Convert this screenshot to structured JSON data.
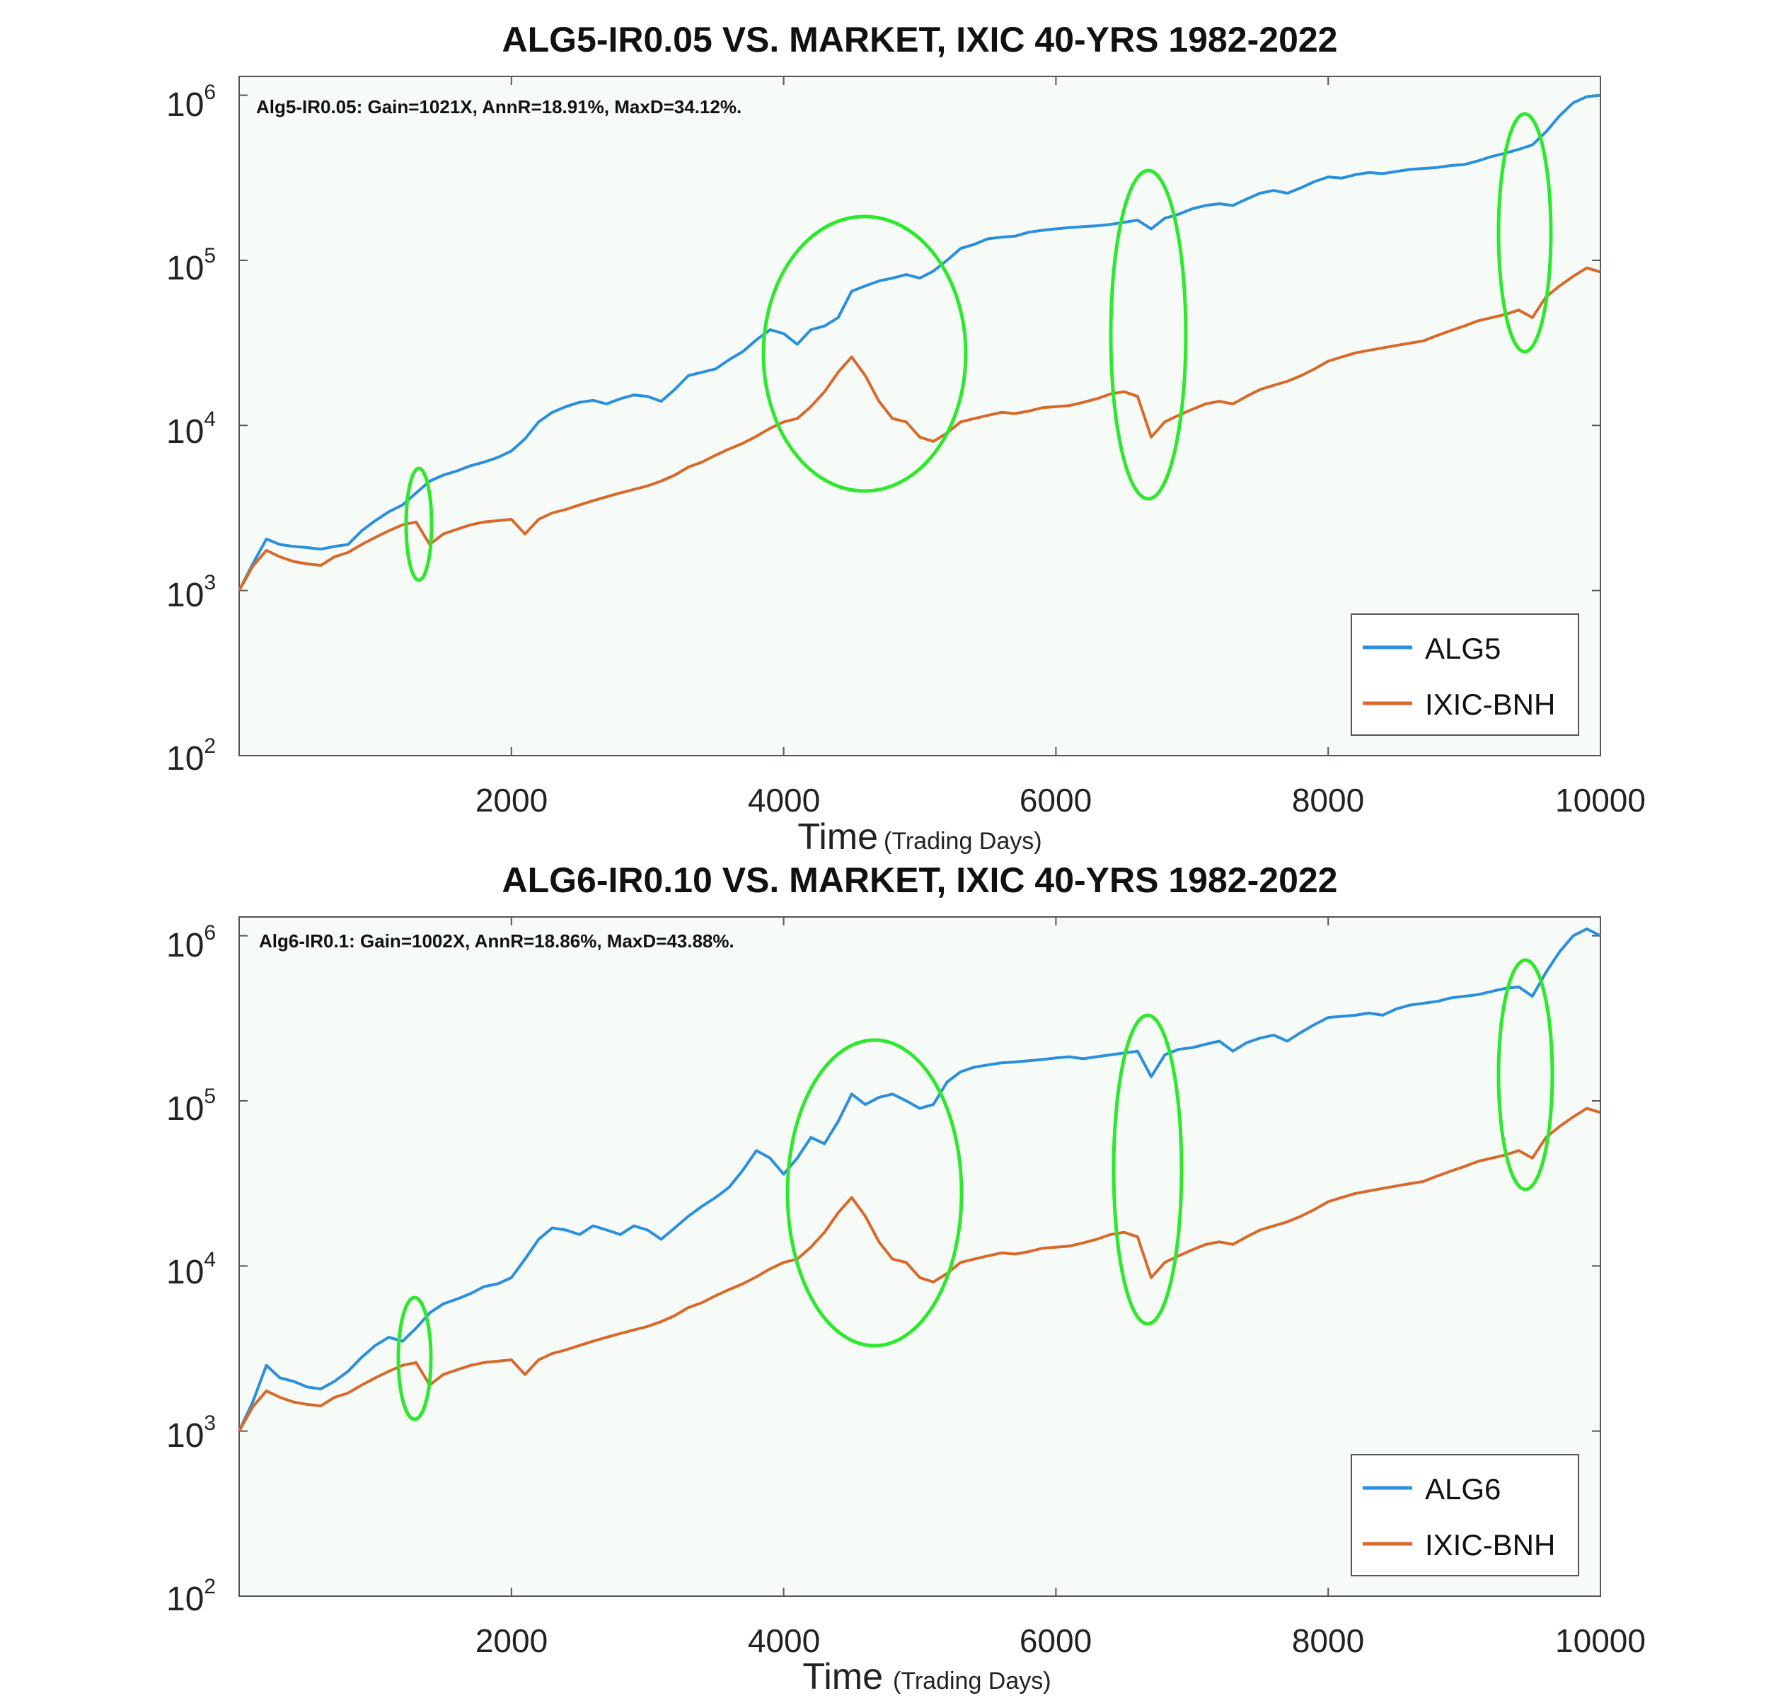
{
  "chart_data": [
    {
      "type": "line",
      "title": "ALG5-IR0.05 VS. MARKET, IXIC 40-YRS 1982-2022",
      "annotation": "Alg5-IR0.05: Gain=1021X, AnnR=18.91%, MaxD=34.12%.",
      "xlabel": "Time",
      "xlabel_note": "(Trading Days)",
      "ylabel": "",
      "xlim": [
        0,
        10000
      ],
      "ylim": [
        100,
        1300000
      ],
      "yscale": "log",
      "x_ticks": [
        2000,
        4000,
        6000,
        8000,
        10000
      ],
      "x_tick_labels": [
        "2000",
        "4000",
        "6000",
        "8000",
        "10000"
      ],
      "y_tick_bases": [
        "10",
        "10",
        "10",
        "10",
        "10"
      ],
      "y_tick_exponents": [
        "2",
        "3",
        "4",
        "5",
        "6"
      ],
      "grid": false,
      "legend_position": "bottom-right",
      "series": [
        {
          "name": "ALG5",
          "color": "#2a8fde",
          "x": [
            0,
            100,
            200,
            300,
            400,
            500,
            600,
            700,
            800,
            900,
            1000,
            1100,
            1200,
            1300,
            1400,
            1500,
            1600,
            1700,
            1800,
            1900,
            2000,
            2100,
            2200,
            2300,
            2400,
            2500,
            2600,
            2700,
            2800,
            2900,
            3000,
            3100,
            3200,
            3300,
            3400,
            3500,
            3600,
            3700,
            3800,
            3900,
            4000,
            4100,
            4200,
            4300,
            4400,
            4500,
            4600,
            4700,
            4800,
            4900,
            5000,
            5100,
            5200,
            5300,
            5400,
            5500,
            5600,
            5700,
            5800,
            5900,
            6000,
            6100,
            6200,
            6300,
            6400,
            6500,
            6600,
            6700,
            6800,
            6900,
            7000,
            7100,
            7200,
            7300,
            7400,
            7500,
            7600,
            7700,
            7800,
            7900,
            8000,
            8100,
            8200,
            8300,
            8400,
            8500,
            8600,
            8700,
            8800,
            8900,
            9000,
            9100,
            9200,
            9300,
            9400,
            9500,
            9600,
            9700,
            9800,
            9900,
            10000
          ],
          "values": [
            1000,
            1450,
            2050,
            1900,
            1850,
            1820,
            1780,
            1850,
            1900,
            2300,
            2650,
            3000,
            3300,
            3900,
            4600,
            5000,
            5300,
            5700,
            6000,
            6400,
            7000,
            8300,
            10500,
            12000,
            13000,
            13800,
            14200,
            13500,
            14500,
            15300,
            15000,
            14000,
            16500,
            20000,
            21000,
            22000,
            25000,
            28000,
            33000,
            38000,
            36000,
            31000,
            38000,
            40000,
            45000,
            65000,
            70000,
            75000,
            78000,
            82000,
            78000,
            86000,
            100000,
            118000,
            125000,
            135000,
            138000,
            140000,
            148000,
            152000,
            155000,
            158000,
            160000,
            162000,
            165000,
            170000,
            175000,
            155000,
            180000,
            190000,
            205000,
            215000,
            220000,
            215000,
            235000,
            255000,
            265000,
            255000,
            275000,
            300000,
            320000,
            315000,
            330000,
            340000,
            335000,
            345000,
            355000,
            360000,
            365000,
            375000,
            380000,
            400000,
            425000,
            445000,
            470000,
            500000,
            600000,
            750000,
            900000,
            980000,
            1000000
          ]
        },
        {
          "name": "IXIC-BNH",
          "color": "#d9692a",
          "x": [
            0,
            100,
            200,
            300,
            400,
            500,
            600,
            700,
            800,
            900,
            1000,
            1100,
            1200,
            1300,
            1400,
            1500,
            1600,
            1700,
            1800,
            1900,
            2000,
            2100,
            2200,
            2300,
            2400,
            2500,
            2600,
            2700,
            2800,
            2900,
            3000,
            3100,
            3200,
            3300,
            3400,
            3500,
            3600,
            3700,
            3800,
            3900,
            4000,
            4100,
            4200,
            4300,
            4400,
            4500,
            4600,
            4700,
            4800,
            4900,
            5000,
            5100,
            5200,
            5300,
            5400,
            5500,
            5600,
            5700,
            5800,
            5900,
            6000,
            6100,
            6200,
            6300,
            6400,
            6500,
            6600,
            6700,
            6800,
            6900,
            7000,
            7100,
            7200,
            7300,
            7400,
            7500,
            7600,
            7700,
            7800,
            7900,
            8000,
            8100,
            8200,
            8300,
            8400,
            8500,
            8600,
            8700,
            8800,
            8900,
            9000,
            9100,
            9200,
            9300,
            9400,
            9500,
            9600,
            9700,
            9800,
            9900,
            10000
          ],
          "values": [
            1000,
            1400,
            1750,
            1600,
            1500,
            1450,
            1420,
            1600,
            1700,
            1900,
            2100,
            2300,
            2500,
            2600,
            1900,
            2200,
            2350,
            2500,
            2600,
            2650,
            2700,
            2200,
            2700,
            2950,
            3100,
            3300,
            3500,
            3700,
            3900,
            4100,
            4300,
            4600,
            5000,
            5600,
            6000,
            6600,
            7200,
            7800,
            8600,
            9600,
            10500,
            11000,
            13000,
            16000,
            21000,
            26000,
            20000,
            14000,
            11000,
            10500,
            8500,
            8000,
            9000,
            10500,
            11000,
            11500,
            12000,
            11800,
            12200,
            12800,
            13000,
            13200,
            13800,
            14500,
            15500,
            16000,
            15000,
            8500,
            10500,
            11500,
            12500,
            13500,
            14000,
            13500,
            15000,
            16500,
            17500,
            18500,
            20000,
            22000,
            24500,
            26000,
            27500,
            28500,
            29500,
            30500,
            31500,
            32500,
            35000,
            37500,
            40000,
            43000,
            45000,
            47000,
            50000,
            45000,
            60000,
            70000,
            80000,
            90000,
            85000
          ]
        }
      ]
    },
    {
      "type": "line",
      "title": "ALG6-IR0.10 VS. MARKET, IXIC 40-YRS 1982-2022",
      "annotation": "Alg6-IR0.1: Gain=1002X, AnnR=18.86%, MaxD=43.88%.",
      "xlabel": "Time",
      "xlabel_note": "(Trading Days)",
      "ylabel": "",
      "xlim": [
        0,
        10000
      ],
      "ylim": [
        100,
        1300000
      ],
      "yscale": "log",
      "x_ticks": [
        2000,
        4000,
        6000,
        8000,
        10000
      ],
      "x_tick_labels": [
        "2000",
        "4000",
        "6000",
        "8000",
        "10000"
      ],
      "y_tick_bases": [
        "10",
        "10",
        "10",
        "10",
        "10"
      ],
      "y_tick_exponents": [
        "2",
        "3",
        "4",
        "5",
        "6"
      ],
      "grid": false,
      "legend_position": "bottom-right",
      "series": [
        {
          "name": "ALG6",
          "color": "#2a8fde",
          "x": [
            0,
            100,
            200,
            300,
            400,
            500,
            600,
            700,
            800,
            900,
            1000,
            1100,
            1200,
            1300,
            1400,
            1500,
            1600,
            1700,
            1800,
            1900,
            2000,
            2100,
            2200,
            2300,
            2400,
            2500,
            2600,
            2700,
            2800,
            2900,
            3000,
            3100,
            3200,
            3300,
            3400,
            3500,
            3600,
            3700,
            3800,
            3900,
            4000,
            4100,
            4200,
            4300,
            4400,
            4500,
            4600,
            4700,
            4800,
            4900,
            5000,
            5100,
            5200,
            5300,
            5400,
            5500,
            5600,
            5700,
            5800,
            5900,
            6000,
            6100,
            6200,
            6300,
            6400,
            6500,
            6600,
            6700,
            6800,
            6900,
            7000,
            7100,
            7200,
            7300,
            7400,
            7500,
            7600,
            7700,
            7800,
            7900,
            8000,
            8100,
            8200,
            8300,
            8400,
            8500,
            8600,
            8700,
            8800,
            8900,
            9000,
            9100,
            9200,
            9300,
            9400,
            9500,
            9600,
            9700,
            9800,
            9900,
            10000
          ],
          "values": [
            1000,
            1500,
            2500,
            2100,
            2000,
            1850,
            1800,
            2000,
            2300,
            2800,
            3300,
            3700,
            3500,
            4200,
            5200,
            5900,
            6300,
            6800,
            7500,
            7800,
            8500,
            11000,
            14500,
            17000,
            16500,
            15500,
            17500,
            16500,
            15500,
            17500,
            16500,
            14500,
            17000,
            20000,
            23000,
            26000,
            30000,
            38000,
            50000,
            45000,
            36000,
            45000,
            60000,
            55000,
            75000,
            110000,
            95000,
            105000,
            110000,
            100000,
            90000,
            95000,
            130000,
            150000,
            160000,
            165000,
            170000,
            172000,
            175000,
            178000,
            182000,
            185000,
            180000,
            185000,
            190000,
            195000,
            200000,
            140000,
            190000,
            205000,
            210000,
            220000,
            230000,
            200000,
            225000,
            240000,
            250000,
            230000,
            260000,
            290000,
            320000,
            325000,
            330000,
            340000,
            330000,
            360000,
            380000,
            390000,
            400000,
            420000,
            430000,
            440000,
            460000,
            480000,
            490000,
            430000,
            600000,
            800000,
            1000000,
            1100000,
            1000000
          ]
        },
        {
          "name": "IXIC-BNH",
          "color": "#d9692a",
          "x": [
            0,
            100,
            200,
            300,
            400,
            500,
            600,
            700,
            800,
            900,
            1000,
            1100,
            1200,
            1300,
            1400,
            1500,
            1600,
            1700,
            1800,
            1900,
            2000,
            2100,
            2200,
            2300,
            2400,
            2500,
            2600,
            2700,
            2800,
            2900,
            3000,
            3100,
            3200,
            3300,
            3400,
            3500,
            3600,
            3700,
            3800,
            3900,
            4000,
            4100,
            4200,
            4300,
            4400,
            4500,
            4600,
            4700,
            4800,
            4900,
            5000,
            5100,
            5200,
            5300,
            5400,
            5500,
            5600,
            5700,
            5800,
            5900,
            6000,
            6100,
            6200,
            6300,
            6400,
            6500,
            6600,
            6700,
            6800,
            6900,
            7000,
            7100,
            7200,
            7300,
            7400,
            7500,
            7600,
            7700,
            7800,
            7900,
            8000,
            8100,
            8200,
            8300,
            8400,
            8500,
            8600,
            8700,
            8800,
            8900,
            9000,
            9100,
            9200,
            9300,
            9400,
            9500,
            9600,
            9700,
            9800,
            9900,
            10000
          ],
          "values": [
            1000,
            1400,
            1750,
            1600,
            1500,
            1450,
            1420,
            1600,
            1700,
            1900,
            2100,
            2300,
            2500,
            2600,
            1900,
            2200,
            2350,
            2500,
            2600,
            2650,
            2700,
            2200,
            2700,
            2950,
            3100,
            3300,
            3500,
            3700,
            3900,
            4100,
            4300,
            4600,
            5000,
            5600,
            6000,
            6600,
            7200,
            7800,
            8600,
            9600,
            10500,
            11000,
            13000,
            16000,
            21000,
            26000,
            20000,
            14000,
            11000,
            10500,
            8500,
            8000,
            9000,
            10500,
            11000,
            11500,
            12000,
            11800,
            12200,
            12800,
            13000,
            13200,
            13800,
            14500,
            15500,
            16000,
            15000,
            8500,
            10500,
            11500,
            12500,
            13500,
            14000,
            13500,
            15000,
            16500,
            17500,
            18500,
            20000,
            22000,
            24500,
            26000,
            27500,
            28500,
            29500,
            30500,
            31500,
            32500,
            35000,
            37500,
            40000,
            43000,
            45000,
            47000,
            50000,
            45000,
            60000,
            70000,
            80000,
            90000,
            85000
          ]
        }
      ]
    }
  ],
  "highlight_color": "#2ee82e"
}
